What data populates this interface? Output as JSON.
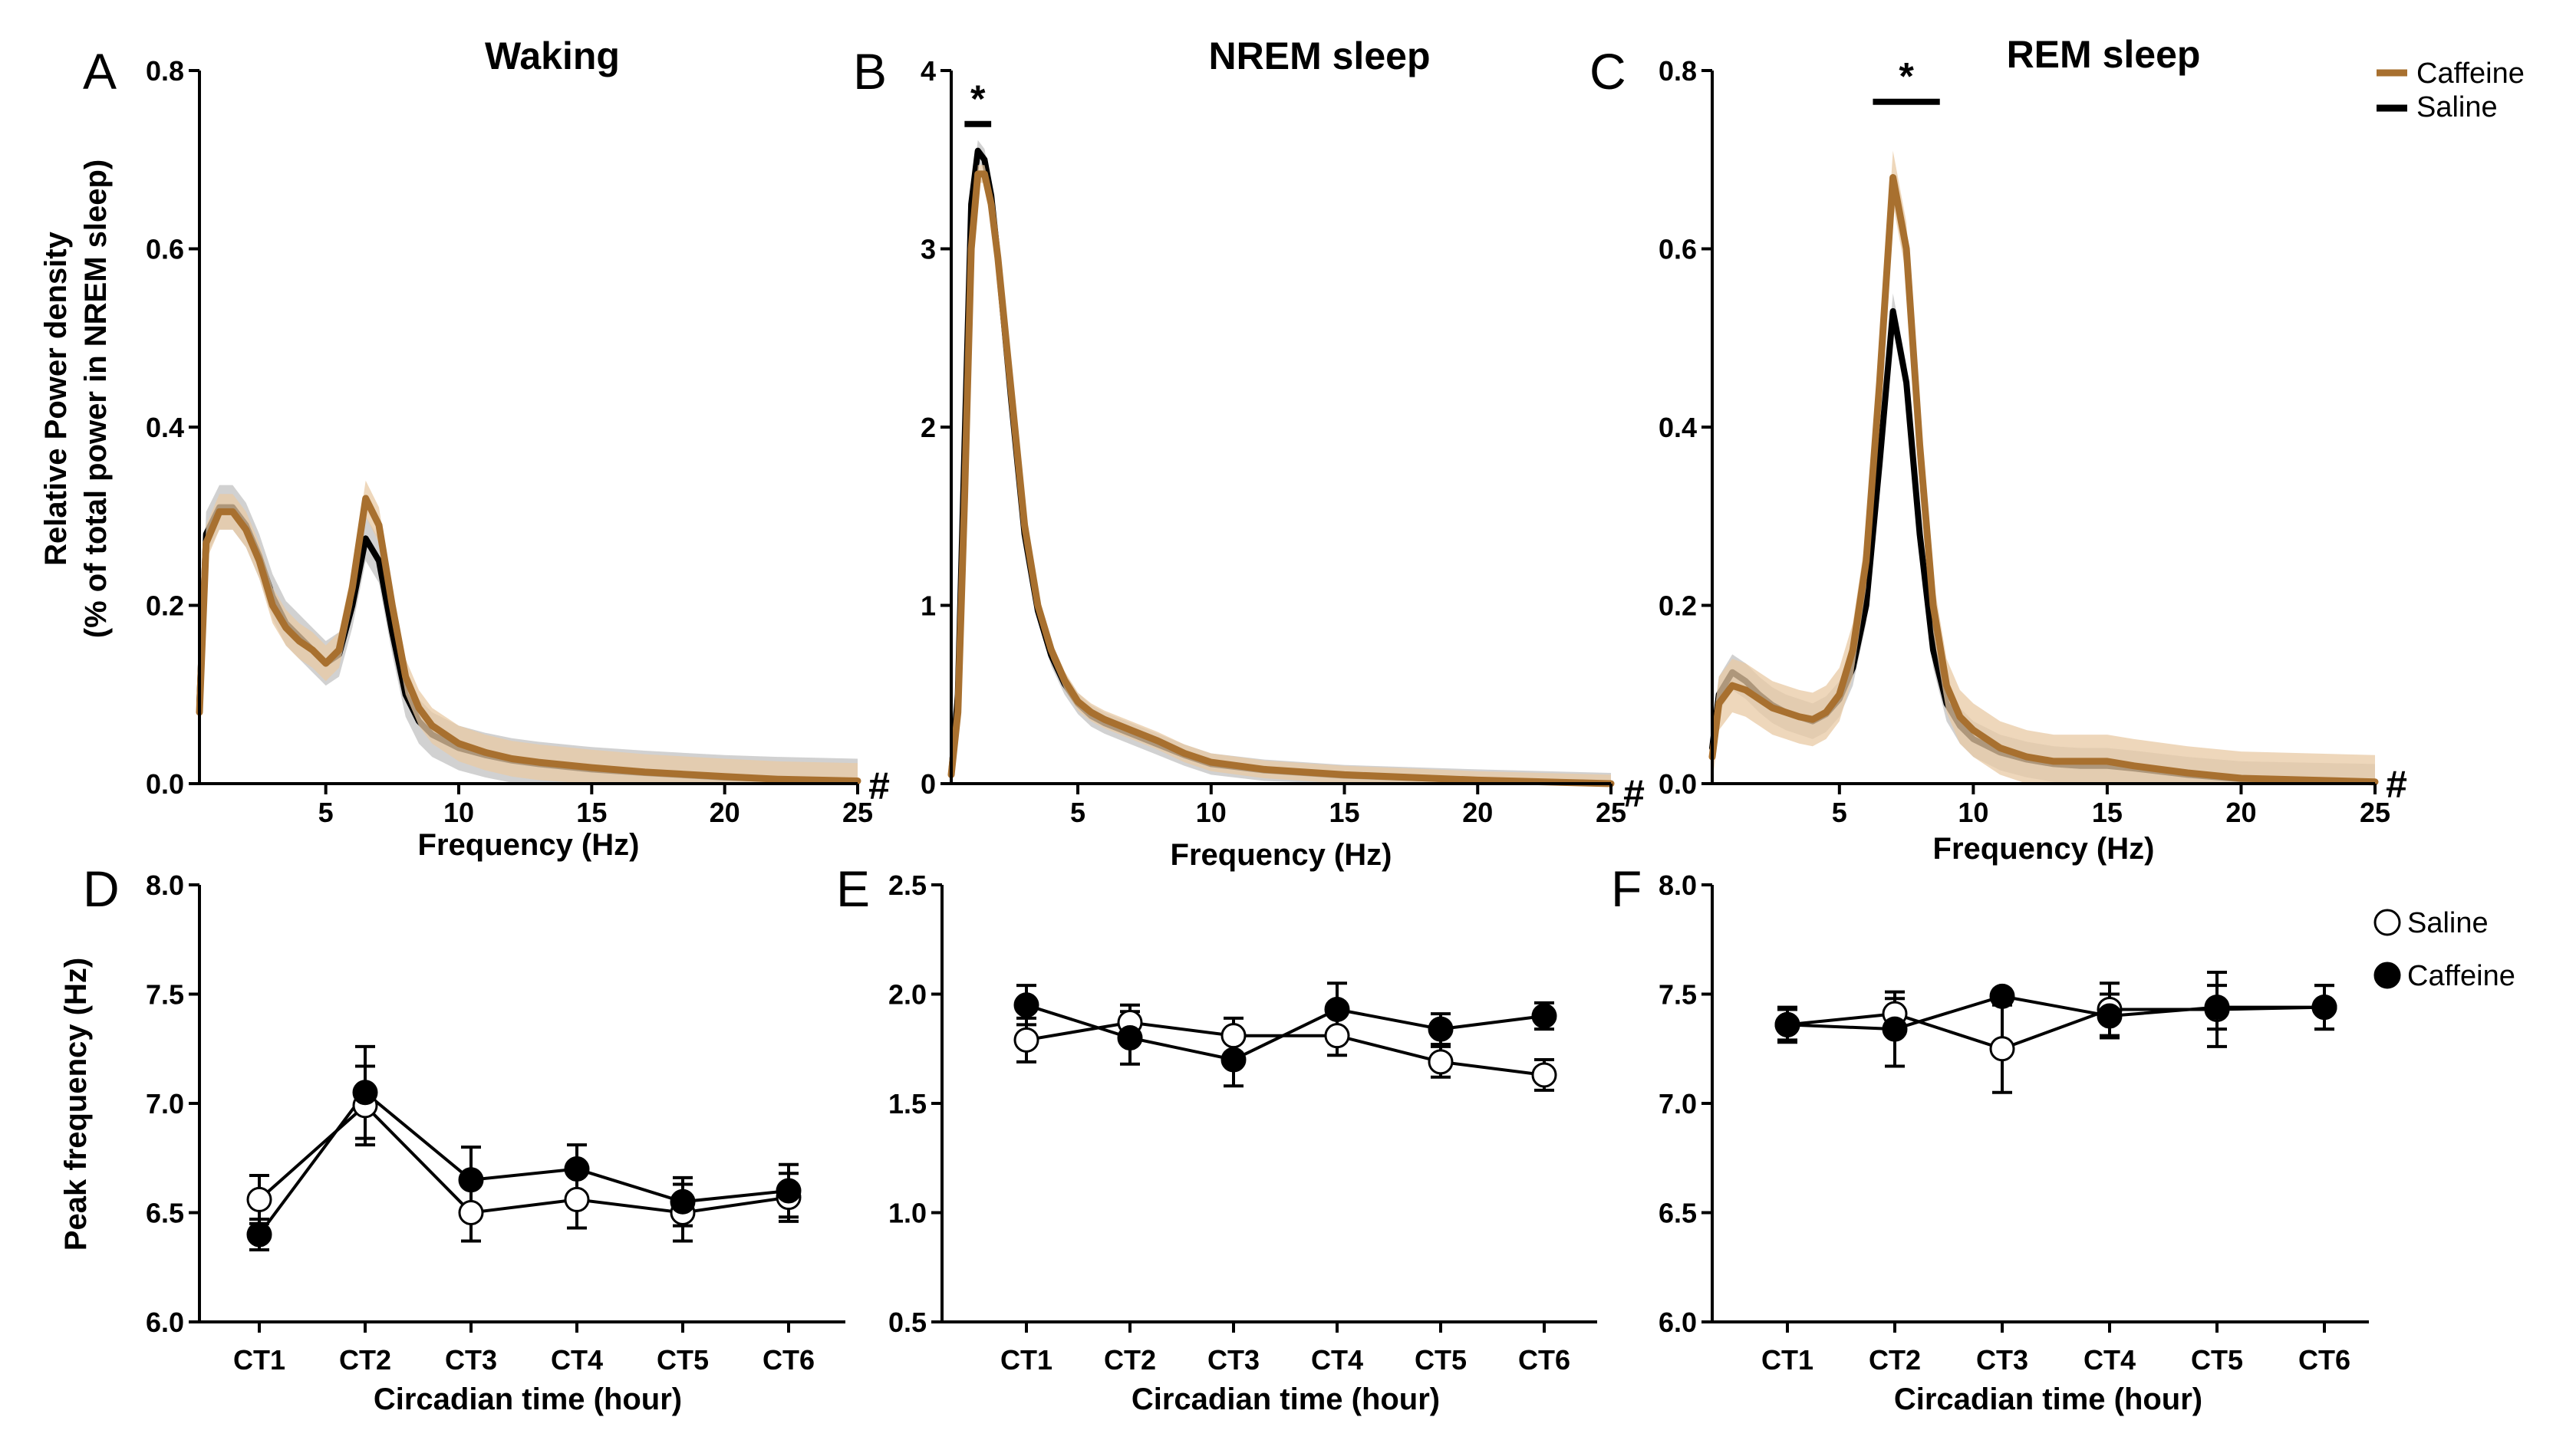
{
  "colors": {
    "caffeine": "#a8702f",
    "caffeine_band": "#e8c9a4",
    "saline": "#000000",
    "background": "#ffffff"
  },
  "legend_top": {
    "caffeine": "Caffeine",
    "saline": "Saline"
  },
  "legend_bottom": {
    "saline": "Saline",
    "caffeine": "Caffeine"
  },
  "shared_ylabel_top": [
    "Relative Power density",
    "(% of total power in NREM sleep)"
  ],
  "chart_data": [
    {
      "panel": "A",
      "type": "line",
      "title": "Waking",
      "xlabel": "Frequency (Hz)",
      "ylabel": "Relative Power density (% of total power in NREM sleep)",
      "xlim": [
        0.25,
        25
      ],
      "ylim": [
        0,
        0.8
      ],
      "xticks": [
        5,
        10,
        15,
        20,
        25
      ],
      "yticks": [
        0.0,
        0.2,
        0.4,
        0.6,
        0.8
      ],
      "ytick_labels": [
        "0.0",
        "0.2",
        "0.4",
        "0.6",
        "0.8"
      ],
      "annotations": [
        {
          "text": "#",
          "at_x": 25
        }
      ],
      "series": [
        {
          "name": "Caffeine",
          "x": [
            0.25,
            0.5,
            1,
            1.5,
            2,
            2.5,
            3,
            3.5,
            4,
            4.5,
            5,
            5.5,
            6,
            6.5,
            7,
            7.5,
            8,
            8.5,
            9,
            10,
            11,
            12,
            13,
            15,
            17,
            20,
            22,
            25
          ],
          "y": [
            0.08,
            0.27,
            0.305,
            0.305,
            0.285,
            0.25,
            0.2,
            0.175,
            0.16,
            0.15,
            0.135,
            0.15,
            0.22,
            0.32,
            0.29,
            0.2,
            0.12,
            0.085,
            0.065,
            0.045,
            0.035,
            0.028,
            0.024,
            0.018,
            0.013,
            0.008,
            0.005,
            0.003
          ],
          "band": 0.02
        },
        {
          "name": "Saline",
          "x": [
            0.25,
            0.5,
            1,
            1.5,
            2,
            2.5,
            3,
            3.5,
            4,
            4.5,
            5,
            5.5,
            6,
            6.5,
            7,
            7.5,
            8,
            8.5,
            9,
            10,
            11,
            12,
            13,
            15,
            17,
            20,
            22,
            25
          ],
          "y": [
            0.09,
            0.28,
            0.31,
            0.31,
            0.29,
            0.255,
            0.21,
            0.18,
            0.165,
            0.15,
            0.135,
            0.145,
            0.2,
            0.275,
            0.25,
            0.17,
            0.1,
            0.07,
            0.055,
            0.04,
            0.032,
            0.026,
            0.022,
            0.016,
            0.012,
            0.007,
            0.005,
            0.003
          ],
          "band": 0.025
        }
      ]
    },
    {
      "panel": "B",
      "type": "line",
      "title": "NREM sleep",
      "xlabel": "Frequency (Hz)",
      "xlim": [
        0.25,
        25
      ],
      "ylim": [
        0,
        4
      ],
      "xticks": [
        5,
        10,
        15,
        20,
        25
      ],
      "yticks": [
        0,
        1,
        2,
        3,
        4
      ],
      "ytick_labels": [
        "0",
        "1",
        "2",
        "3",
        "4"
      ],
      "annotations": [
        {
          "text": "#",
          "at_x": 25
        },
        {
          "text": "*",
          "x_range": [
            0.75,
            1.75
          ],
          "y": 3.7
        }
      ],
      "series": [
        {
          "name": "Caffeine",
          "x": [
            0.25,
            0.5,
            0.75,
            1,
            1.25,
            1.5,
            1.75,
            2,
            2.5,
            3,
            3.5,
            4,
            4.5,
            5,
            5.5,
            6,
            7,
            8,
            9,
            10,
            12,
            15,
            20,
            25
          ],
          "y": [
            0.05,
            0.4,
            1.6,
            3.0,
            3.42,
            3.42,
            3.25,
            2.95,
            2.2,
            1.45,
            1.0,
            0.75,
            0.58,
            0.46,
            0.4,
            0.36,
            0.3,
            0.24,
            0.17,
            0.12,
            0.08,
            0.05,
            0.02,
            0.0
          ],
          "band": 0.05
        },
        {
          "name": "Saline",
          "x": [
            0.25,
            0.5,
            0.75,
            1,
            1.25,
            1.5,
            1.75,
            2,
            2.5,
            3,
            3.5,
            4,
            4.5,
            5,
            5.5,
            6,
            7,
            8,
            9,
            10,
            12,
            15,
            20,
            25
          ],
          "y": [
            0.05,
            0.5,
            1.9,
            3.25,
            3.55,
            3.5,
            3.3,
            2.95,
            2.15,
            1.4,
            0.97,
            0.72,
            0.56,
            0.45,
            0.38,
            0.34,
            0.28,
            0.22,
            0.16,
            0.11,
            0.075,
            0.045,
            0.02,
            0.0
          ],
          "band": 0.06
        }
      ]
    },
    {
      "panel": "C",
      "type": "line",
      "title": "REM sleep",
      "xlabel": "Frequency (Hz)",
      "xlim": [
        0.25,
        25
      ],
      "ylim": [
        0,
        0.8
      ],
      "xticks": [
        5,
        10,
        15,
        20,
        25
      ],
      "yticks": [
        0.0,
        0.2,
        0.4,
        0.6,
        0.8
      ],
      "ytick_labels": [
        "0.0",
        "0.2",
        "0.4",
        "0.6",
        "0.8"
      ],
      "annotations": [
        {
          "text": "#",
          "at_x": 25
        },
        {
          "text": "*",
          "x_range": [
            6.25,
            8.75
          ],
          "y": 0.765
        }
      ],
      "series": [
        {
          "name": "Caffeine",
          "x": [
            0.25,
            0.5,
            1,
            1.5,
            2,
            2.5,
            3,
            3.5,
            4,
            4.5,
            5,
            5.5,
            6,
            6.5,
            7,
            7.5,
            8,
            8.5,
            9,
            9.5,
            10,
            11,
            12,
            13,
            14,
            15,
            16,
            18,
            20,
            25
          ],
          "y": [
            0.03,
            0.09,
            0.11,
            0.105,
            0.095,
            0.085,
            0.08,
            0.075,
            0.072,
            0.08,
            0.1,
            0.15,
            0.25,
            0.45,
            0.68,
            0.6,
            0.38,
            0.2,
            0.11,
            0.075,
            0.06,
            0.04,
            0.03,
            0.025,
            0.025,
            0.025,
            0.02,
            0.012,
            0.006,
            0.002
          ],
          "band": 0.03
        },
        {
          "name": "Saline",
          "x": [
            0.25,
            0.5,
            1,
            1.5,
            2,
            2.5,
            3,
            3.5,
            4,
            4.5,
            5,
            5.5,
            6,
            6.5,
            7,
            7.5,
            8,
            8.5,
            9,
            9.5,
            10,
            11,
            12,
            13,
            14,
            15,
            16,
            18,
            20,
            25
          ],
          "y": [
            0.04,
            0.1,
            0.125,
            0.115,
            0.1,
            0.088,
            0.08,
            0.075,
            0.07,
            0.078,
            0.095,
            0.13,
            0.2,
            0.36,
            0.53,
            0.45,
            0.28,
            0.15,
            0.09,
            0.065,
            0.05,
            0.035,
            0.027,
            0.022,
            0.02,
            0.02,
            0.017,
            0.01,
            0.005,
            0.002
          ],
          "band": 0.02
        }
      ]
    },
    {
      "panel": "D",
      "type": "line",
      "xlabel": "Circadian time (hour)",
      "ylabel": "Peak frequency (Hz)",
      "categories": [
        "CT1",
        "CT2",
        "CT3",
        "CT4",
        "CT5",
        "CT6"
      ],
      "ylim": [
        6.0,
        8.0
      ],
      "yticks": [
        6.0,
        6.5,
        7.0,
        7.5,
        8.0
      ],
      "ytick_labels": [
        "6.0",
        "6.5",
        "7.0",
        "7.5",
        "8.0"
      ],
      "series": [
        {
          "name": "Saline",
          "marker": "open-circle",
          "values": [
            6.56,
            6.99,
            6.5,
            6.56,
            6.5,
            6.57
          ],
          "errors": [
            0.11,
            0.18,
            0.13,
            0.13,
            0.13,
            0.11
          ]
        },
        {
          "name": "Caffeine",
          "marker": "filled-circle",
          "values": [
            6.4,
            7.05,
            6.65,
            6.7,
            6.55,
            6.6
          ],
          "errors": [
            0.07,
            0.21,
            0.15,
            0.11,
            0.11,
            0.12
          ]
        }
      ]
    },
    {
      "panel": "E",
      "type": "line",
      "xlabel": "Circadian time (hour)",
      "categories": [
        "CT1",
        "CT2",
        "CT3",
        "CT4",
        "CT5",
        "CT6"
      ],
      "ylim": [
        0.5,
        2.5
      ],
      "yticks": [
        0.5,
        1.0,
        1.5,
        2.0,
        2.5
      ],
      "ytick_labels": [
        "0.5",
        "1.0",
        "1.5",
        "2.0",
        "2.5"
      ],
      "series": [
        {
          "name": "Saline",
          "marker": "open-circle",
          "values": [
            1.79,
            1.87,
            1.81,
            1.81,
            1.69,
            1.63
          ],
          "errors": [
            0.1,
            0.08,
            0.08,
            0.09,
            0.07,
            0.07
          ]
        },
        {
          "name": "Caffeine",
          "marker": "filled-circle",
          "values": [
            1.95,
            1.8,
            1.7,
            1.93,
            1.84,
            1.9
          ],
          "errors": [
            0.09,
            0.12,
            0.12,
            0.12,
            0.07,
            0.06
          ]
        }
      ]
    },
    {
      "panel": "F",
      "type": "line",
      "xlabel": "Circadian time (hour)",
      "categories": [
        "CT1",
        "CT2",
        "CT3",
        "CT4",
        "CT5",
        "CT6"
      ],
      "ylim": [
        6.0,
        8.0
      ],
      "yticks": [
        6.0,
        6.5,
        7.0,
        7.5,
        8.0
      ],
      "ytick_labels": [
        "6.0",
        "6.5",
        "7.0",
        "7.5",
        "8.0"
      ],
      "series": [
        {
          "name": "Saline",
          "marker": "open-circle",
          "values": [
            7.36,
            7.41,
            7.25,
            7.43,
            7.43,
            7.44
          ],
          "errors": [
            0.08,
            0.07,
            0.2,
            0.12,
            0.17,
            0.1
          ]
        },
        {
          "name": "Caffeine",
          "marker": "filled-circle",
          "values": [
            7.36,
            7.34,
            7.49,
            7.4,
            7.44,
            7.44
          ],
          "errors": [
            0.07,
            0.17,
            0.03,
            0.1,
            0.1,
            0.1
          ]
        }
      ]
    }
  ]
}
